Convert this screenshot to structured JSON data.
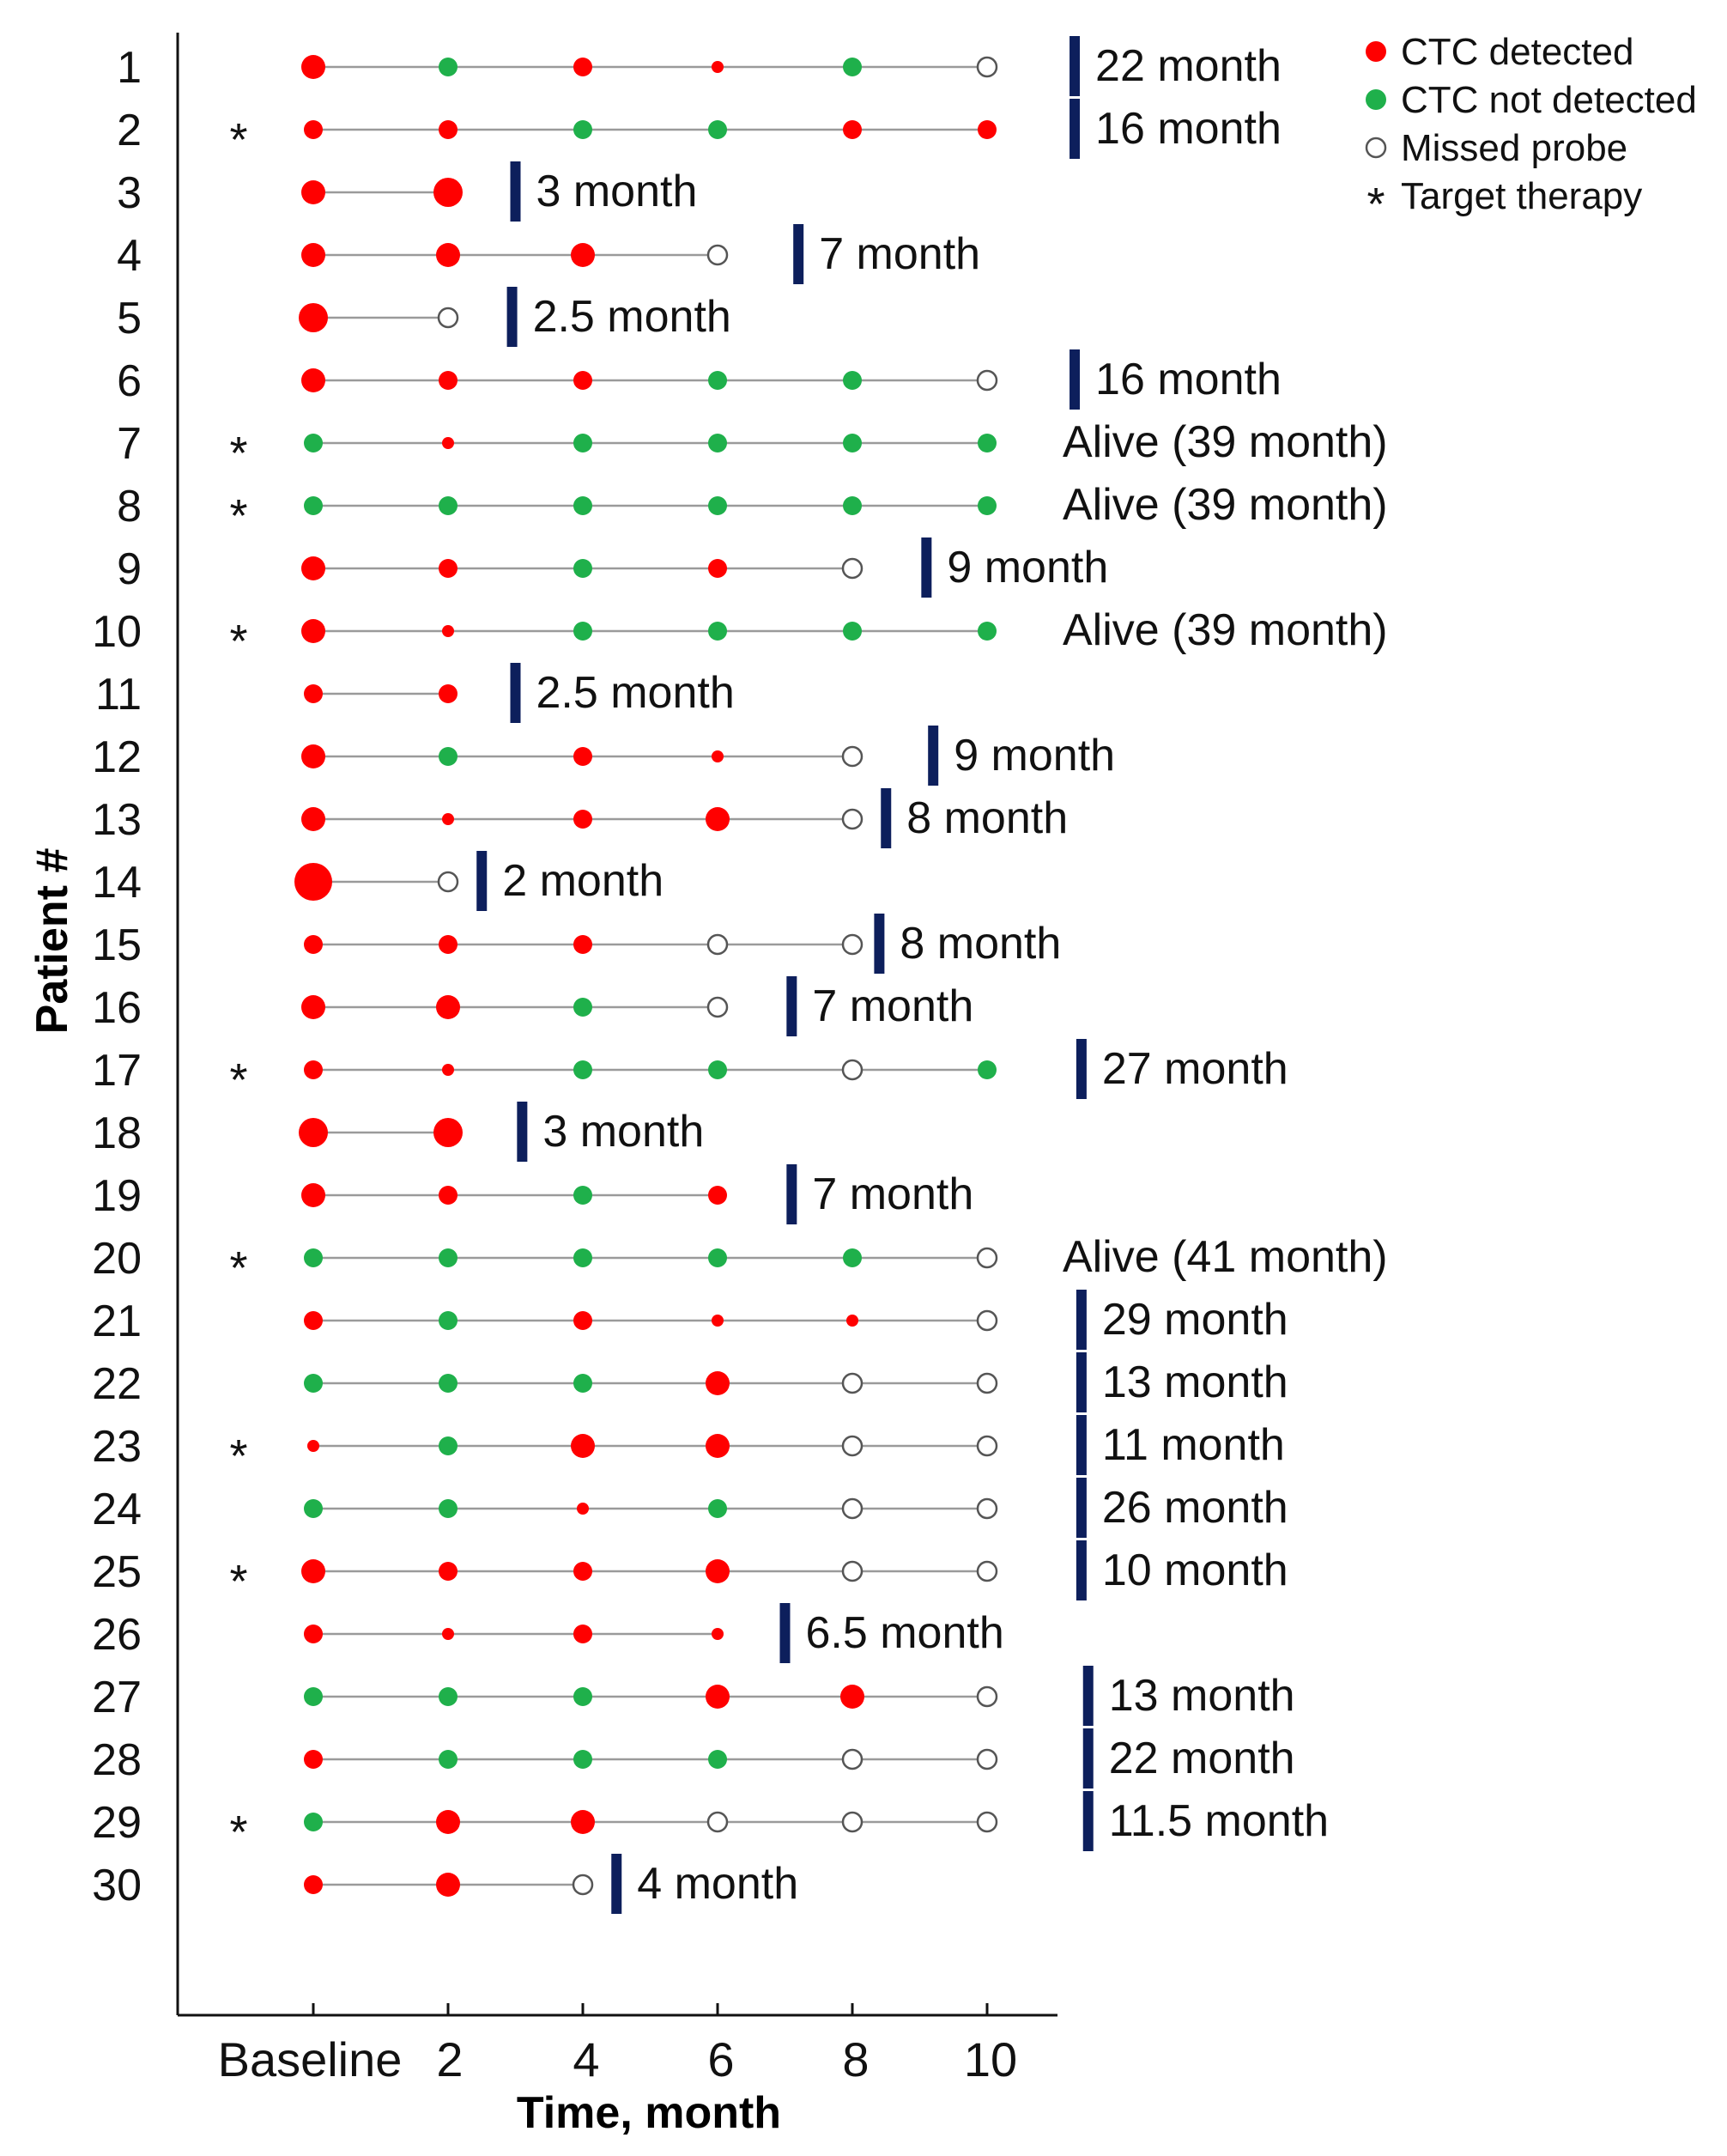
{
  "chart_data": {
    "type": "scatter",
    "title": "",
    "xlabel": "Time, month",
    "ylabel": "Patient #",
    "xticks": [
      "Baseline",
      "2",
      "4",
      "6",
      "8",
      "10"
    ],
    "xlim": [
      -2,
      11.2
    ],
    "legend": {
      "position": "top-right",
      "entries": [
        {
          "symbol": "detected",
          "label": "CTC  detected"
        },
        {
          "symbol": "not_detected",
          "label": "CTC  not  detected"
        },
        {
          "symbol": "missed",
          "label": "Missed  probe"
        },
        {
          "symbol": "star",
          "label": "Target  therapy"
        }
      ]
    },
    "colors": {
      "detected": "#ff0000",
      "not_detected": "#1fb04b",
      "missed": "#ffffff",
      "line": "#9a9a9a",
      "bar": "#0d1f5c",
      "alive": "#2db34a",
      "early": "#ff2a2a"
    },
    "status_codes": {
      "D": "CTC detected",
      "N": "CTC not detected",
      "M": "Missed probe"
    },
    "patients": [
      {
        "id": "1",
        "target_therapy": false,
        "statuses": [
          "D",
          "N",
          "D",
          "D",
          "N",
          "M"
        ],
        "sizes": [
          3,
          2,
          2,
          1,
          2,
          2
        ],
        "outcome_label": "22 month",
        "outcome_time": 11.3,
        "outcome_type": "death"
      },
      {
        "id": "2",
        "target_therapy": true,
        "statuses": [
          "D",
          "D",
          "N",
          "N",
          "D",
          "D"
        ],
        "sizes": [
          2,
          2,
          2,
          2,
          2,
          2
        ],
        "outcome_label": "16 month",
        "outcome_time": 11.3,
        "outcome_type": "death"
      },
      {
        "id": "3",
        "target_therapy": false,
        "statuses": [
          "D",
          "D"
        ],
        "sizes": [
          3,
          4
        ],
        "outcome_label": "3 month",
        "outcome_time": 3.0,
        "outcome_type": "death"
      },
      {
        "id": "4",
        "target_therapy": false,
        "statuses": [
          "D",
          "D",
          "D",
          "M"
        ],
        "sizes": [
          3,
          3,
          3,
          2
        ],
        "outcome_label": "7 month",
        "outcome_time": 7.2,
        "outcome_type": "death"
      },
      {
        "id": "5",
        "target_therapy": false,
        "statuses": [
          "D",
          "M"
        ],
        "sizes": [
          4,
          2
        ],
        "outcome_label": "2.5 month",
        "outcome_time": 2.95,
        "outcome_type": "death"
      },
      {
        "id": "6",
        "target_therapy": false,
        "statuses": [
          "D",
          "D",
          "D",
          "N",
          "N",
          "M"
        ],
        "sizes": [
          3,
          2,
          2,
          2,
          2,
          2
        ],
        "outcome_label": "16 month",
        "outcome_time": 11.3,
        "outcome_type": "death"
      },
      {
        "id": "7",
        "target_therapy": true,
        "statuses": [
          "N",
          "D",
          "N",
          "N",
          "N",
          "N"
        ],
        "sizes": [
          2,
          1,
          2,
          2,
          2,
          2
        ],
        "outcome_label": "Alive (39 month)",
        "outcome_time": null,
        "outcome_type": "alive"
      },
      {
        "id": "8",
        "target_therapy": true,
        "statuses": [
          "N",
          "N",
          "N",
          "N",
          "N",
          "N"
        ],
        "sizes": [
          2,
          2,
          2,
          2,
          2,
          2
        ],
        "outcome_label": "Alive (39 month)",
        "outcome_time": null,
        "outcome_type": "alive"
      },
      {
        "id": "9",
        "target_therapy": false,
        "statuses": [
          "D",
          "D",
          "N",
          "D",
          "M"
        ],
        "sizes": [
          3,
          2,
          2,
          2,
          2
        ],
        "outcome_label": "9 month",
        "outcome_time": 9.1,
        "outcome_type": "death"
      },
      {
        "id": "10",
        "target_therapy": true,
        "statuses": [
          "D",
          "D",
          "N",
          "N",
          "N",
          "N"
        ],
        "sizes": [
          3,
          1,
          2,
          2,
          2,
          2
        ],
        "outcome_label": "Alive (39 month)",
        "outcome_time": null,
        "outcome_type": "alive"
      },
      {
        "id": "11",
        "target_therapy": false,
        "statuses": [
          "D",
          "D"
        ],
        "sizes": [
          2,
          2
        ],
        "outcome_label": "2.5 month",
        "outcome_time": 3.0,
        "outcome_type": "early"
      },
      {
        "id": "12",
        "target_therapy": false,
        "statuses": [
          "D",
          "N",
          "D",
          "D",
          "M"
        ],
        "sizes": [
          3,
          2,
          2,
          1,
          2
        ],
        "outcome_label": "9 month",
        "outcome_time": 9.2,
        "outcome_type": "death"
      },
      {
        "id": "13",
        "target_therapy": false,
        "statuses": [
          "D",
          "D",
          "D",
          "D",
          "M"
        ],
        "sizes": [
          3,
          1,
          2,
          3,
          2
        ],
        "outcome_label": "8 month",
        "outcome_time": 8.5,
        "outcome_type": "death"
      },
      {
        "id": "14",
        "target_therapy": false,
        "statuses": [
          "D",
          "M"
        ],
        "sizes": [
          5,
          2
        ],
        "outcome_label": "2 month",
        "outcome_time": 2.5,
        "outcome_type": "death"
      },
      {
        "id": "15",
        "target_therapy": false,
        "statuses": [
          "D",
          "D",
          "D",
          "M",
          "M"
        ],
        "sizes": [
          2,
          2,
          2,
          2,
          2
        ],
        "outcome_label": "8 month",
        "outcome_time": 8.4,
        "outcome_type": "death"
      },
      {
        "id": "16",
        "target_therapy": false,
        "statuses": [
          "D",
          "D",
          "N",
          "M"
        ],
        "sizes": [
          3,
          3,
          2,
          2
        ],
        "outcome_label": "7 month",
        "outcome_time": 7.1,
        "outcome_type": "death"
      },
      {
        "id": "17",
        "target_therapy": true,
        "statuses": [
          "D",
          "D",
          "N",
          "N",
          "M",
          "N"
        ],
        "sizes": [
          2,
          1,
          2,
          2,
          2,
          2
        ],
        "outcome_label": "27 month",
        "outcome_time": 11.4,
        "outcome_type": "death"
      },
      {
        "id": "18",
        "target_therapy": false,
        "statuses": [
          "D",
          "D"
        ],
        "sizes": [
          4,
          4
        ],
        "outcome_label": "3 month",
        "outcome_time": 3.1,
        "outcome_type": "death"
      },
      {
        "id": "19",
        "target_therapy": false,
        "statuses": [
          "D",
          "D",
          "N",
          "D"
        ],
        "sizes": [
          3,
          2,
          2,
          2
        ],
        "outcome_label": "7 month",
        "outcome_time": 7.1,
        "outcome_type": "death"
      },
      {
        "id": "20",
        "target_therapy": true,
        "statuses": [
          "N",
          "N",
          "N",
          "N",
          "N",
          "M"
        ],
        "sizes": [
          2,
          2,
          2,
          2,
          2,
          2
        ],
        "outcome_label": "Alive (41 month)",
        "outcome_time": null,
        "outcome_type": "alive"
      },
      {
        "id": "21",
        "target_therapy": false,
        "statuses": [
          "D",
          "N",
          "D",
          "D",
          "D",
          "M"
        ],
        "sizes": [
          2,
          2,
          2,
          1,
          1,
          2
        ],
        "outcome_label": "29 month",
        "outcome_time": 11.4,
        "outcome_type": "death"
      },
      {
        "id": "22",
        "target_therapy": false,
        "statuses": [
          "N",
          "N",
          "N",
          "D",
          "M",
          "M"
        ],
        "sizes": [
          2,
          2,
          2,
          3,
          2,
          2
        ],
        "outcome_label": "13 month",
        "outcome_time": 11.4,
        "outcome_type": "death"
      },
      {
        "id": "23",
        "target_therapy": true,
        "statuses": [
          "D",
          "N",
          "D",
          "D",
          "M",
          "M"
        ],
        "sizes": [
          1,
          2,
          3,
          3,
          2,
          2
        ],
        "outcome_label": "11 month",
        "outcome_time": 11.4,
        "outcome_type": "death"
      },
      {
        "id": "24",
        "target_therapy": false,
        "statuses": [
          "N",
          "N",
          "D",
          "N",
          "M",
          "M"
        ],
        "sizes": [
          2,
          2,
          1,
          2,
          2,
          2
        ],
        "outcome_label": "26 month",
        "outcome_time": 11.4,
        "outcome_type": "death"
      },
      {
        "id": "25",
        "target_therapy": true,
        "statuses": [
          "D",
          "D",
          "D",
          "D",
          "M",
          "M"
        ],
        "sizes": [
          3,
          2,
          2,
          3,
          2,
          2
        ],
        "outcome_label": "10 month",
        "outcome_time": 11.4,
        "outcome_type": "death"
      },
      {
        "id": "26",
        "target_therapy": false,
        "statuses": [
          "D",
          "D",
          "D",
          "D"
        ],
        "sizes": [
          2,
          1,
          2,
          1
        ],
        "outcome_label": "6.5 month",
        "outcome_time": 7.0,
        "outcome_type": "death"
      },
      {
        "id": "27",
        "target_therapy": false,
        "statuses": [
          "N",
          "N",
          "N",
          "D",
          "D",
          "M"
        ],
        "sizes": [
          2,
          2,
          2,
          3,
          3,
          2
        ],
        "outcome_label": "13 month",
        "outcome_time": 11.5,
        "outcome_type": "death"
      },
      {
        "id": "28",
        "target_therapy": false,
        "statuses": [
          "D",
          "N",
          "N",
          "N",
          "M",
          "M"
        ],
        "sizes": [
          2,
          2,
          2,
          2,
          2,
          2
        ],
        "outcome_label": "22 month",
        "outcome_time": 11.5,
        "outcome_type": "death"
      },
      {
        "id": "29",
        "target_therapy": true,
        "statuses": [
          "N",
          "D",
          "D",
          "M",
          "M",
          "M"
        ],
        "sizes": [
          2,
          3,
          3,
          2,
          2,
          2
        ],
        "outcome_label": "11.5 month",
        "outcome_time": 11.5,
        "outcome_type": "death"
      },
      {
        "id": "30",
        "target_therapy": false,
        "statuses": [
          "D",
          "D",
          "M"
        ],
        "sizes": [
          2,
          3,
          2
        ],
        "outcome_label": "4 month",
        "outcome_time": 4.5,
        "outcome_type": "death"
      }
    ]
  }
}
